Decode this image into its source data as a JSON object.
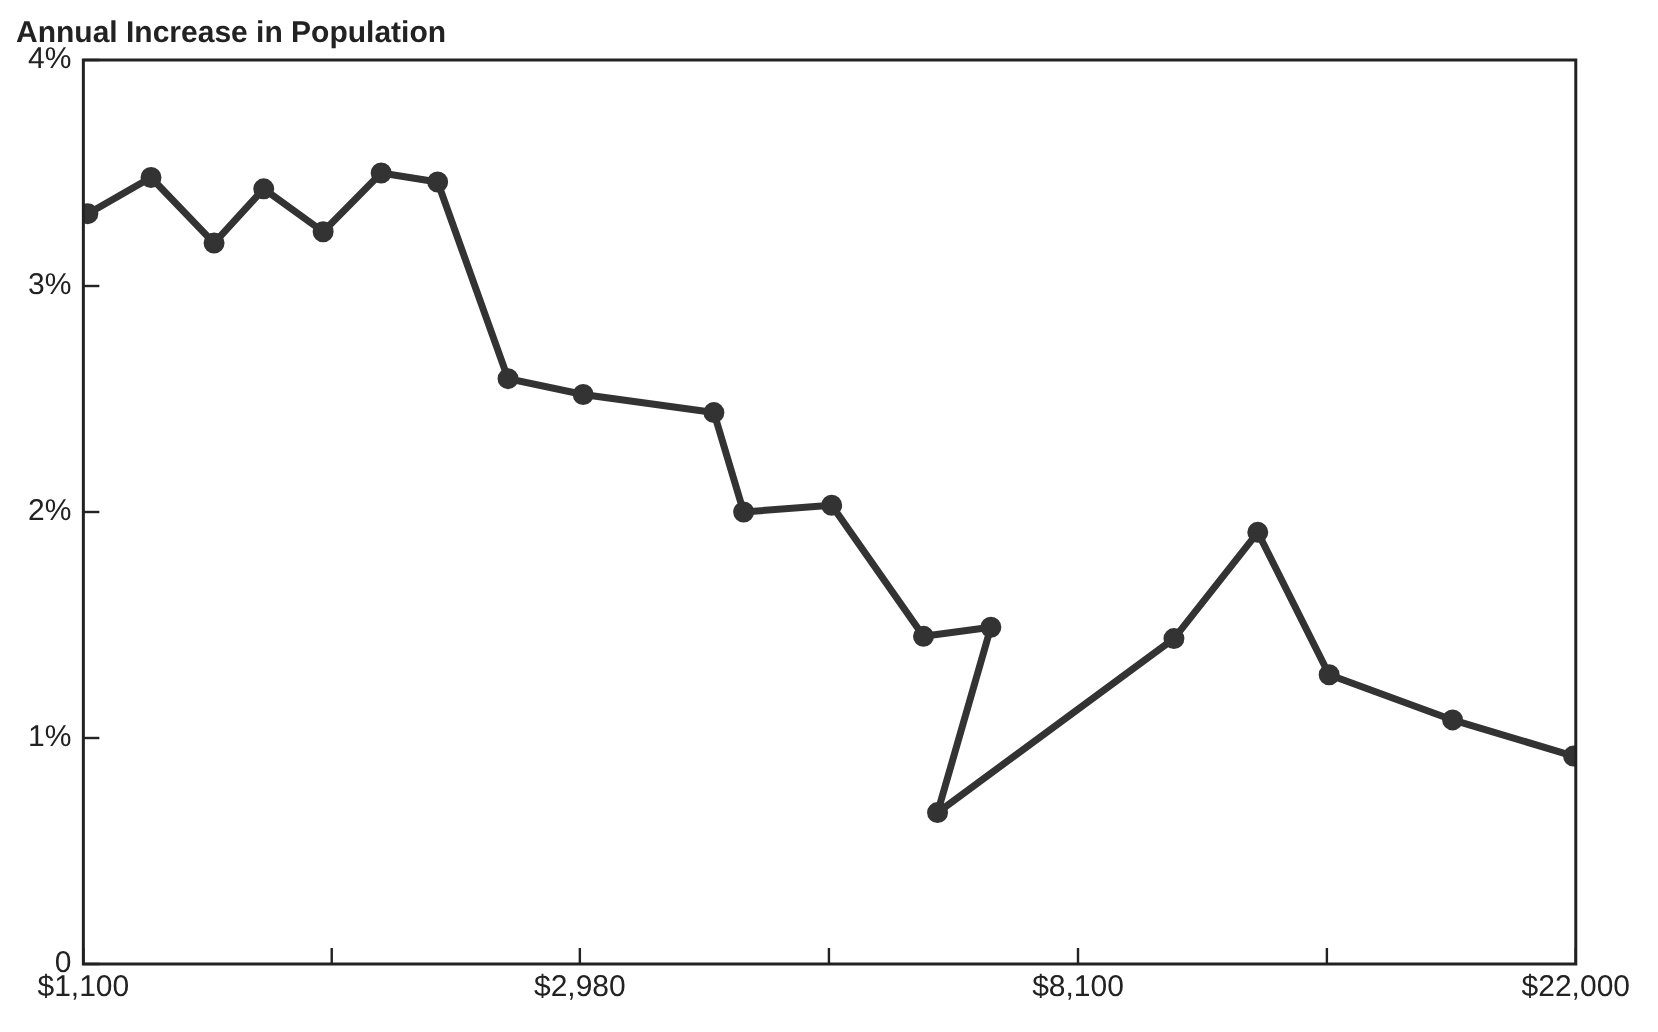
{
  "chart_data": {
    "type": "line",
    "title": "Annual Increase in Population",
    "log": "x",
    "x": [
      1110,
      1260,
      1430,
      1580,
      1780,
      2000,
      2240,
      2580,
      3000,
      3900,
      4140,
      4940,
      5940,
      6800,
      6110,
      9820,
      11620,
      13410,
      17180,
      21900
    ],
    "series": [
      {
        "color": "#333333",
        "values": [
          3.32,
          3.48,
          3.19,
          3.43,
          3.24,
          3.5,
          3.46,
          2.59,
          2.52,
          2.44,
          2.0,
          2.03,
          1.45,
          1.49,
          0.67,
          1.44,
          1.91,
          1.28,
          1.08,
          0.92
        ]
      }
    ],
    "xlim": [
      1100,
      22000
    ],
    "xticks": [
      {
        "value": 1100,
        "label": "$1,100"
      },
      {
        "value": 1811,
        "label": null
      },
      {
        "value": 2980,
        "label": "$2,980"
      },
      {
        "value": 4913,
        "label": null
      },
      {
        "value": 8100,
        "label": "$8,100"
      },
      {
        "value": 13349,
        "label": null
      },
      {
        "value": 22000,
        "label": "$22,000"
      }
    ],
    "ylim": [
      0,
      4
    ],
    "yticks": [
      0,
      {
        "value": 1,
        "label": "1%"
      },
      {
        "value": 2,
        "label": "2%"
      },
      {
        "value": 3,
        "label": "3%"
      },
      {
        "value": 4,
        "label": "4%"
      }
    ],
    "grid": false,
    "legend": false,
    "marker": "circle",
    "line_style": "solid"
  }
}
